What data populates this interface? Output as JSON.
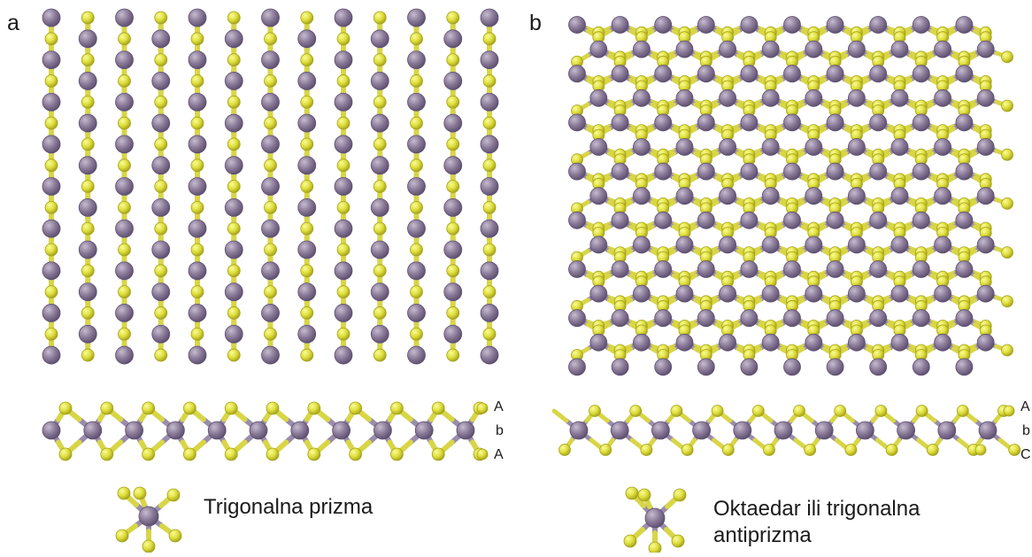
{
  "colors": {
    "metal": "#8a7a98",
    "metal_edge": "#5e5070",
    "chalcogen": "#dede3c",
    "chalcogen_edge": "#a6a31c",
    "bond_metal": "#9a8cab",
    "bond_chalcogen": "#d8d646"
  },
  "panels": [
    {
      "letter": "a",
      "stacking": [
        "A",
        "b",
        "A"
      ],
      "caption_lines": [
        "Trigonalna prizma"
      ],
      "polyhedron_icon": "trigonal-prism-icon"
    },
    {
      "letter": "b",
      "stacking": [
        "A",
        "b",
        "C"
      ],
      "caption_lines": [
        "Oktaedar ili trigonalna",
        "antiprizma"
      ],
      "polyhedron_icon": "octahedron-icon"
    }
  ]
}
